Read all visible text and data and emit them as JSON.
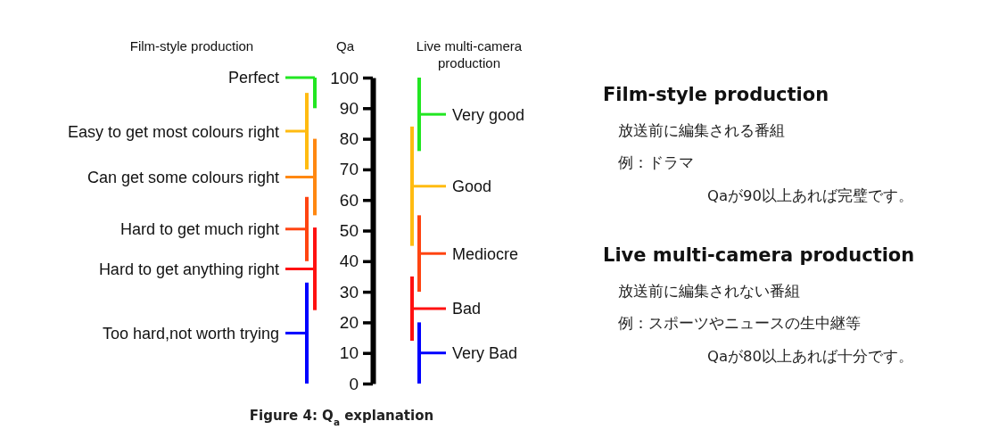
{
  "chart_data": [
    {
      "type": "bar",
      "title": "Figure 4: Q$_{a}$ explanation",
      "ylabel": "Qa",
      "categories": [
        "Film-style production",
        "Live multi-camera production"
      ],
      "ylim": [
        0,
        100
      ],
      "yticks": [
        0,
        10,
        20,
        30,
        40,
        50,
        60,
        70,
        80,
        90,
        100
      ],
      "series": [
        {
          "color": "#22e622",
          "values": [
            10,
            null
          ],
          "base": [
            90,
            null
          ]
        },
        {
          "color": "#ffbb11",
          "values": [
            25,
            null
          ],
          "base": [
            70,
            null
          ]
        },
        {
          "color": "#ff8811",
          "values": [
            25,
            null
          ],
          "base": [
            55,
            null
          ]
        },
        {
          "color": "#ff4411",
          "values": [
            21,
            null
          ],
          "base": [
            40,
            null
          ]
        },
        {
          "color": "#ff1111",
          "values": [
            27,
            null
          ],
          "base": [
            24,
            null
          ]
        },
        {
          "color": "#0000ff",
          "values": [
            33,
            null
          ],
          "base": [
            0,
            null
          ]
        },
        {
          "color": "#22e622",
          "values": [
            null,
            24
          ],
          "base": [
            null,
            76
          ]
        },
        {
          "color": "#ffbb11",
          "values": [
            null,
            39
          ],
          "base": [
            null,
            45
          ]
        },
        {
          "color": "#ff4411",
          "values": [
            null,
            25
          ],
          "base": [
            null,
            30
          ]
        },
        {
          "color": "#ff1111",
          "values": [
            null,
            21
          ],
          "base": [
            null,
            14
          ]
        },
        {
          "color": "#0000ff",
          "values": [
            null,
            20
          ],
          "base": [
            null,
            0
          ]
        }
      ],
      "annotations": [
        "Perfect",
        "Easy to get most colours right",
        "Can get some colours right",
        "Hard to get much right",
        "Hard to get anything right",
        "Too hard,not worth trying",
        "Very good",
        "Good",
        "Mediocre",
        "Bad",
        "Very Bad"
      ]
    },
    {
      "type": "other",
      "title": "Film-style production",
      "annotations": [
        "放送前に編集される番組",
        "例：ドラマ",
        "Qaが90以上あれば完璧です。"
      ]
    },
    {
      "type": "other",
      "title": "Live multi-camera production",
      "annotations": [
        "放送前に編集されない番組",
        "例：スポーツやニュースの生中継等",
        "Qaが80以上あれば十分です。"
      ]
    }
  ]
}
